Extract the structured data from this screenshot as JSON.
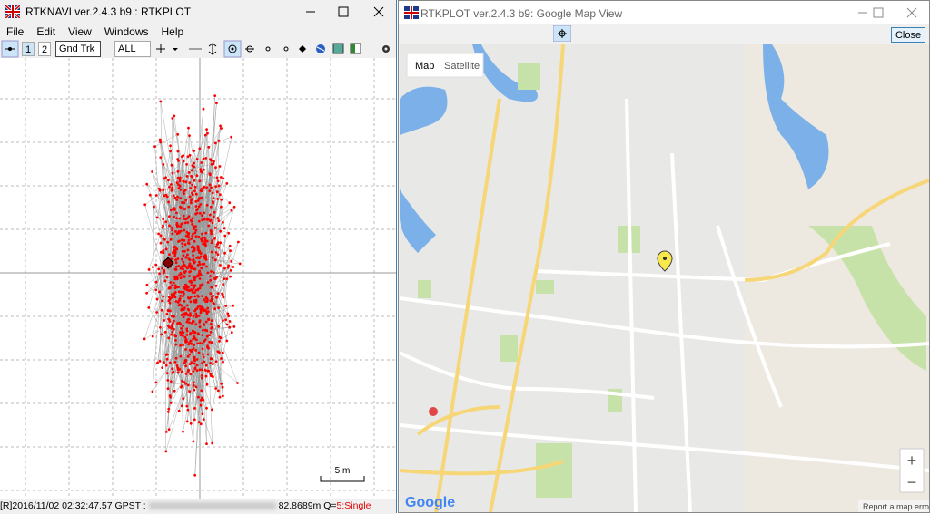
{
  "left_window": {
    "title": "RTKNAVI ver.2.4.3 b9 : RTKPLOT",
    "menu": [
      "File",
      "Edit",
      "View",
      "Windows",
      "Help"
    ],
    "toolbar": {
      "button_1": "1",
      "button_2": "2",
      "plot_type": "Gnd Trk",
      "solution": "ALL"
    },
    "scale_label": "5 m",
    "status": {
      "time": "[R]2016/11/02 02:32:47.57 GPST :",
      "height": "82.8689m",
      "quality_label": "Q=",
      "quality": "5:Single"
    }
  },
  "right_window": {
    "title": "RTKPLOT ver.2.4.3 b9: Google Map View",
    "close_button": "Close",
    "map_tabs": [
      "Map",
      "Satellite"
    ],
    "zoom_in": "+",
    "zoom_out": "−",
    "logo": "Google",
    "report": "Report a map error"
  }
}
